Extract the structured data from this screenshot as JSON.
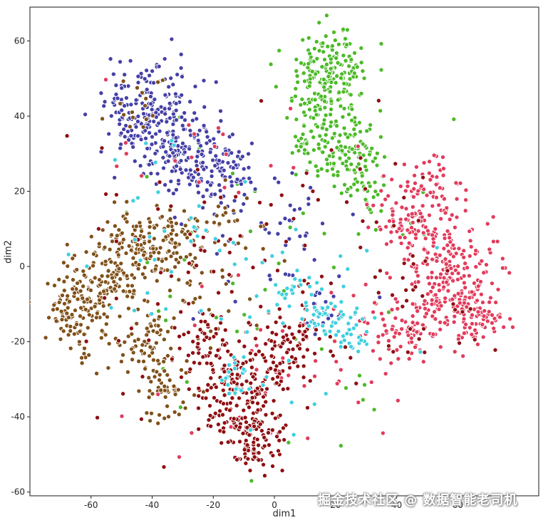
{
  "watermark": "掘金技术社区 @ 数据智能老司机",
  "chart_data": {
    "type": "scatter",
    "title": "",
    "xlabel": "dim1",
    "ylabel": "dim2",
    "xlim": [
      -80,
      86.5
    ],
    "ylim": [
      -61,
      69
    ],
    "xticks": [
      -60,
      -40,
      -20,
      0,
      20,
      40,
      60
    ],
    "yticks": [
      -60,
      -40,
      -20,
      0,
      20,
      40,
      60
    ],
    "grid": false,
    "legend": "none",
    "description": "t-SNE embedding scatter plot with six color clusters; values below are cluster summaries (center, std-dev spread, point count) read from the figure",
    "point_style": {
      "radius": 3.1,
      "edge_color": "#ffffff",
      "edge_width": 0.9
    },
    "series": [
      {
        "name": "green-cluster",
        "color": "#4cba28",
        "blobs": [
          {
            "cx": 17,
            "cy": 50,
            "sx": 6,
            "sy": 6.5,
            "n": 220
          },
          {
            "cx": 23,
            "cy": 31,
            "sx": 6,
            "sy": 5,
            "n": 110
          },
          {
            "cx": 11,
            "cy": 34,
            "sx": 3.5,
            "sy": 4,
            "n": 35
          },
          {
            "cx": 30,
            "cy": 20,
            "sx": 4,
            "sy": 3,
            "n": 25
          },
          {
            "cx": -5,
            "cy": -5,
            "sx": 30,
            "sy": 22,
            "n": 55
          }
        ]
      },
      {
        "name": "blue-cluster",
        "color": "#4540a6",
        "blobs": [
          {
            "cx": -40,
            "cy": 41,
            "sx": 8,
            "sy": 6.5,
            "n": 210
          },
          {
            "cx": -24,
            "cy": 28,
            "sx": 6,
            "sy": 4.5,
            "n": 120
          },
          {
            "cx": -33,
            "cy": 33,
            "sx": 10,
            "sy": 8,
            "n": 60
          },
          {
            "cx": -12,
            "cy": 24,
            "sx": 3.5,
            "sy": 3.5,
            "n": 30
          },
          {
            "cx": 0,
            "cy": 5,
            "sx": 14,
            "sy": 12,
            "n": 30
          },
          {
            "cx": 16,
            "cy": -11,
            "sx": 3,
            "sy": 3,
            "n": 18
          },
          {
            "cx": 5,
            "cy": 12,
            "sx": 3,
            "sy": 3,
            "n": 14
          }
        ]
      },
      {
        "name": "brown-cluster",
        "color": "#80511a",
        "blobs": [
          {
            "cx": -63,
            "cy": -10,
            "sx": 5.5,
            "sy": 6,
            "n": 170
          },
          {
            "cx": -50,
            "cy": 3,
            "sx": 5.5,
            "sy": 5.5,
            "n": 120
          },
          {
            "cx": -34,
            "cy": 8,
            "sx": 5.5,
            "sy": 4.5,
            "n": 90
          },
          {
            "cx": -41,
            "cy": -21,
            "sx": 4.5,
            "sy": 4.5,
            "n": 70
          },
          {
            "cx": -36,
            "cy": -33,
            "sx": 3.5,
            "sy": 4,
            "n": 50
          },
          {
            "cx": -25,
            "cy": -5,
            "sx": 12,
            "sy": 10,
            "n": 55
          },
          {
            "cx": -44,
            "cy": 44,
            "sx": 6,
            "sy": 4,
            "n": 16
          },
          {
            "cx": -15,
            "cy": 12,
            "sx": 6,
            "sy": 4,
            "n": 20
          }
        ]
      },
      {
        "name": "crimson-cluster",
        "color": "#e23b5c",
        "blobs": [
          {
            "cx": 58,
            "cy": -4,
            "sx": 8,
            "sy": 8,
            "n": 230
          },
          {
            "cx": 46,
            "cy": 12,
            "sx": 7,
            "sy": 6,
            "n": 110
          },
          {
            "cx": 41,
            "cy": -17,
            "sx": 7,
            "sy": 4.5,
            "n": 80
          },
          {
            "cx": 67,
            "cy": -13,
            "sx": 4.5,
            "sy": 4,
            "n": 50
          },
          {
            "cx": 52,
            "cy": 22,
            "sx": 5,
            "sy": 4,
            "n": 40
          },
          {
            "cx": 10,
            "cy": -25,
            "sx": 22,
            "sy": 12,
            "n": 45
          },
          {
            "cx": -20,
            "cy": 30,
            "sx": 18,
            "sy": 10,
            "n": 20
          }
        ]
      },
      {
        "name": "darkred-cluster",
        "color": "#8f0f12",
        "blobs": [
          {
            "cx": -13,
            "cy": -33,
            "sx": 6.5,
            "sy": 6,
            "n": 150
          },
          {
            "cx": -7,
            "cy": -46,
            "sx": 5.5,
            "sy": 4.5,
            "n": 100
          },
          {
            "cx": 4,
            "cy": -22,
            "sx": 6.5,
            "sy": 5.5,
            "n": 90
          },
          {
            "cx": -22,
            "cy": -20,
            "sx": 4,
            "sy": 4,
            "n": 40
          },
          {
            "cx": -5,
            "cy": 0,
            "sx": 28,
            "sy": 22,
            "n": 110
          },
          {
            "cx": 45,
            "cy": -5,
            "sx": 12,
            "sy": 10,
            "n": 30
          }
        ]
      },
      {
        "name": "cyan-cluster",
        "color": "#3fd0e0",
        "blobs": [
          {
            "cx": 17,
            "cy": -13,
            "sx": 3.5,
            "sy": 2.5,
            "n": 32
          },
          {
            "cx": 25,
            "cy": -18,
            "sx": 3.5,
            "sy": 2.5,
            "n": 26
          },
          {
            "cx": -13,
            "cy": -29,
            "sx": 2.5,
            "sy": 2.5,
            "n": 18
          },
          {
            "cx": 6,
            "cy": -7,
            "sx": 4,
            "sy": 3.5,
            "n": 22
          },
          {
            "cx": 0,
            "cy": -12,
            "sx": 26,
            "sy": 16,
            "n": 55
          },
          {
            "cx": -30,
            "cy": 20,
            "sx": 15,
            "sy": 12,
            "n": 15
          }
        ]
      }
    ]
  }
}
